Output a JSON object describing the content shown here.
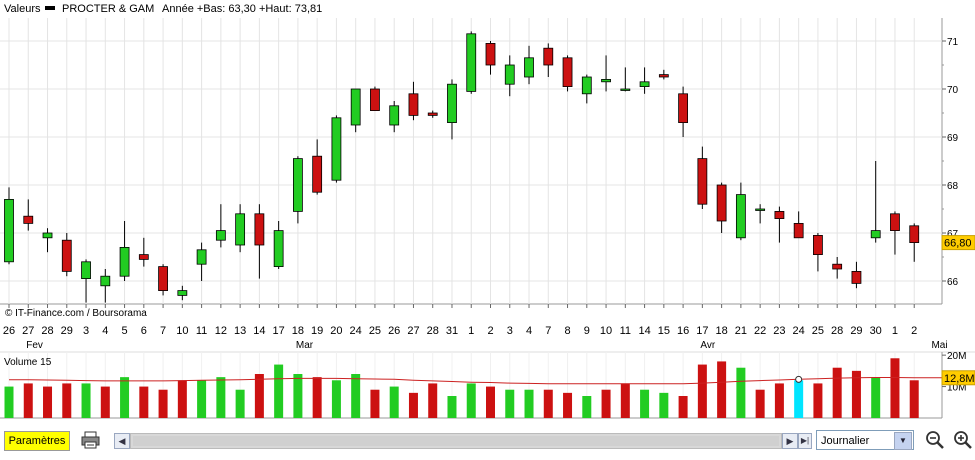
{
  "header": {
    "label": "Valeurs",
    "name": "PROCTER & GAM",
    "info": "Année +Bas: 63,30 +Haut: 73,81"
  },
  "credit": "© IT-Finance.com / Boursorama",
  "last_price_label": "66,80",
  "volume_panel": {
    "title": "Volume 15",
    "last_label": "12,8M",
    "axis_labels": [
      "20M",
      "10M"
    ]
  },
  "month_labels": [
    {
      "text": "Fev",
      "index": 1
    },
    {
      "text": "Mar",
      "index": 15
    },
    {
      "text": "Avr",
      "index": 36
    },
    {
      "text": "Mai",
      "index": 48
    }
  ],
  "toolbar": {
    "params_label": "Paramètres",
    "period_value": "Journalier"
  },
  "colors": {
    "up": "#22cc22",
    "down": "#cc1111",
    "highlight": "#00e5ff",
    "ma": "#cc2222",
    "grid": "#e4e4e4",
    "price_label_bg": "#ffcc00"
  },
  "icons": [
    "printer-icon",
    "scroll-left-icon",
    "scroll-right-icon",
    "zoom-out-icon",
    "zoom-in-icon"
  ],
  "chart_data": [
    {
      "type": "candlestick",
      "title": "PROCTER & GAM",
      "ylim": [
        65.5,
        71.2
      ],
      "yticks": [
        66,
        67,
        68,
        69,
        70,
        71
      ],
      "grid": true,
      "dates": [
        "26",
        "27",
        "28",
        "29",
        "3",
        "4",
        "5",
        "6",
        "7",
        "10",
        "11",
        "12",
        "13",
        "14",
        "17",
        "18",
        "19",
        "20",
        "24",
        "25",
        "26",
        "27",
        "28",
        "31",
        "1",
        "2",
        "3",
        "4",
        "7",
        "8",
        "9",
        "10",
        "11",
        "14",
        "15",
        "16",
        "17",
        "18",
        "21",
        "22",
        "23",
        "24",
        "25",
        "28",
        "29",
        "30",
        "1",
        "2"
      ],
      "candles": [
        {
          "o": 66.4,
          "h": 67.95,
          "l": 66.35,
          "c": 67.7
        },
        {
          "o": 67.35,
          "h": 67.7,
          "l": 67.05,
          "c": 67.2
        },
        {
          "o": 66.9,
          "h": 67.1,
          "l": 66.6,
          "c": 67.0
        },
        {
          "o": 66.85,
          "h": 67.0,
          "l": 66.1,
          "c": 66.2
        },
        {
          "o": 66.05,
          "h": 66.45,
          "l": 65.55,
          "c": 66.4
        },
        {
          "o": 65.9,
          "h": 66.25,
          "l": 65.55,
          "c": 66.1
        },
        {
          "o": 66.1,
          "h": 67.25,
          "l": 66.0,
          "c": 66.7
        },
        {
          "o": 66.55,
          "h": 66.9,
          "l": 66.3,
          "c": 66.45
        },
        {
          "o": 66.3,
          "h": 66.35,
          "l": 65.7,
          "c": 65.8
        },
        {
          "o": 65.7,
          "h": 65.9,
          "l": 65.6,
          "c": 65.8
        },
        {
          "o": 66.35,
          "h": 66.8,
          "l": 66.0,
          "c": 66.65
        },
        {
          "o": 66.85,
          "h": 67.6,
          "l": 66.7,
          "c": 67.05
        },
        {
          "o": 66.75,
          "h": 67.6,
          "l": 66.6,
          "c": 67.4
        },
        {
          "o": 67.4,
          "h": 67.6,
          "l": 66.05,
          "c": 66.75
        },
        {
          "o": 66.3,
          "h": 67.25,
          "l": 66.25,
          "c": 67.05
        },
        {
          "o": 67.45,
          "h": 68.6,
          "l": 67.2,
          "c": 68.55
        },
        {
          "o": 68.6,
          "h": 68.95,
          "l": 67.8,
          "c": 67.85
        },
        {
          "o": 68.1,
          "h": 69.45,
          "l": 68.05,
          "c": 69.4
        },
        {
          "o": 69.25,
          "h": 70.0,
          "l": 69.1,
          "c": 70.0
        },
        {
          "o": 70.0,
          "h": 70.05,
          "l": 69.6,
          "c": 69.55
        },
        {
          "o": 69.25,
          "h": 69.75,
          "l": 69.1,
          "c": 69.65
        },
        {
          "o": 69.9,
          "h": 70.15,
          "l": 69.35,
          "c": 69.45
        },
        {
          "o": 69.5,
          "h": 69.55,
          "l": 69.4,
          "c": 69.45
        },
        {
          "o": 69.3,
          "h": 70.2,
          "l": 68.95,
          "c": 70.1
        },
        {
          "o": 69.95,
          "h": 71.2,
          "l": 69.9,
          "c": 71.15
        },
        {
          "o": 70.95,
          "h": 71.0,
          "l": 70.3,
          "c": 70.5
        },
        {
          "o": 70.1,
          "h": 70.7,
          "l": 69.85,
          "c": 70.5
        },
        {
          "o": 70.25,
          "h": 70.9,
          "l": 70.1,
          "c": 70.65
        },
        {
          "o": 70.85,
          "h": 70.95,
          "l": 70.25,
          "c": 70.5
        },
        {
          "o": 70.65,
          "h": 70.7,
          "l": 69.95,
          "c": 70.05
        },
        {
          "o": 69.9,
          "h": 70.3,
          "l": 69.7,
          "c": 70.25
        },
        {
          "o": 70.15,
          "h": 70.7,
          "l": 69.95,
          "c": 70.2
        },
        {
          "o": 70.0,
          "h": 70.45,
          "l": 69.95,
          "c": 70.0
        },
        {
          "o": 70.05,
          "h": 70.45,
          "l": 69.9,
          "c": 70.15
        },
        {
          "o": 70.3,
          "h": 70.4,
          "l": 70.2,
          "c": 70.25
        },
        {
          "o": 69.9,
          "h": 70.05,
          "l": 69.0,
          "c": 69.3
        },
        {
          "o": 68.55,
          "h": 68.8,
          "l": 67.5,
          "c": 67.6
        },
        {
          "o": 68.0,
          "h": 68.05,
          "l": 67.0,
          "c": 67.25
        },
        {
          "o": 66.9,
          "h": 68.05,
          "l": 66.85,
          "c": 67.8
        },
        {
          "o": 67.5,
          "h": 67.6,
          "l": 67.2,
          "c": 67.5
        },
        {
          "o": 67.45,
          "h": 67.55,
          "l": 66.8,
          "c": 67.3
        },
        {
          "o": 67.2,
          "h": 67.45,
          "l": 66.9,
          "c": 66.9
        },
        {
          "o": 66.95,
          "h": 67.0,
          "l": 66.2,
          "c": 66.55
        },
        {
          "o": 66.35,
          "h": 66.5,
          "l": 66.05,
          "c": 66.25
        },
        {
          "o": 66.2,
          "h": 66.4,
          "l": 65.85,
          "c": 65.95
        },
        {
          "o": 66.9,
          "h": 68.5,
          "l": 66.8,
          "c": 67.05
        },
        {
          "o": 67.4,
          "h": 67.45,
          "l": 66.55,
          "c": 67.05
        },
        {
          "o": 67.15,
          "h": 67.2,
          "l": 66.4,
          "c": 66.8
        }
      ],
      "last": 66.8
    },
    {
      "type": "bar",
      "title": "Volume 15",
      "ylim": [
        0,
        21
      ],
      "series": [
        {
          "values": [
            10,
            11,
            10,
            11,
            11,
            10,
            13,
            10,
            9,
            12,
            12,
            13,
            9,
            14,
            17,
            14,
            13,
            12,
            14,
            9,
            10,
            8,
            11,
            7,
            11,
            10,
            9,
            9,
            9,
            8,
            7,
            9,
            11,
            9,
            8,
            7,
            17,
            18,
            16,
            9,
            11,
            12,
            11,
            16,
            15,
            13,
            19,
            12
          ]
        }
      ],
      "colors": [
        "#22cc22",
        "#cc1111",
        "#cc1111",
        "#cc1111",
        "#22cc22",
        "#cc1111",
        "#22cc22",
        "#cc1111",
        "#cc1111",
        "#cc1111",
        "#22cc22",
        "#22cc22",
        "#22cc22",
        "#cc1111",
        "#22cc22",
        "#22cc22",
        "#cc1111",
        "#22cc22",
        "#22cc22",
        "#cc1111",
        "#22cc22",
        "#cc1111",
        "#cc1111",
        "#22cc22",
        "#22cc22",
        "#cc1111",
        "#22cc22",
        "#22cc22",
        "#cc1111",
        "#cc1111",
        "#22cc22",
        "#cc1111",
        "#cc1111",
        "#22cc22",
        "#22cc22",
        "#cc1111",
        "#cc1111",
        "#cc1111",
        "#22cc22",
        "#cc1111",
        "#cc1111",
        "#00e5ff",
        "#cc1111",
        "#cc1111",
        "#cc1111",
        "#22cc22",
        "#cc1111",
        "#cc1111"
      ],
      "ma": [
        12.2,
        12.2,
        12.1,
        12.0,
        11.9,
        11.8,
        11.8,
        11.8,
        11.8,
        11.9,
        12.0,
        12.1,
        12.2,
        12.3,
        12.5,
        12.6,
        12.6,
        12.6,
        12.5,
        12.4,
        12.3,
        12.0,
        11.8,
        11.6,
        11.4,
        11.3,
        11.1,
        11.0,
        10.9,
        10.9,
        10.9,
        10.9,
        10.9,
        10.9,
        10.9,
        10.9,
        11.1,
        11.4,
        11.7,
        11.9,
        12.1,
        12.3,
        12.5,
        12.7,
        12.8,
        12.9,
        12.9,
        12.8
      ]
    }
  ]
}
